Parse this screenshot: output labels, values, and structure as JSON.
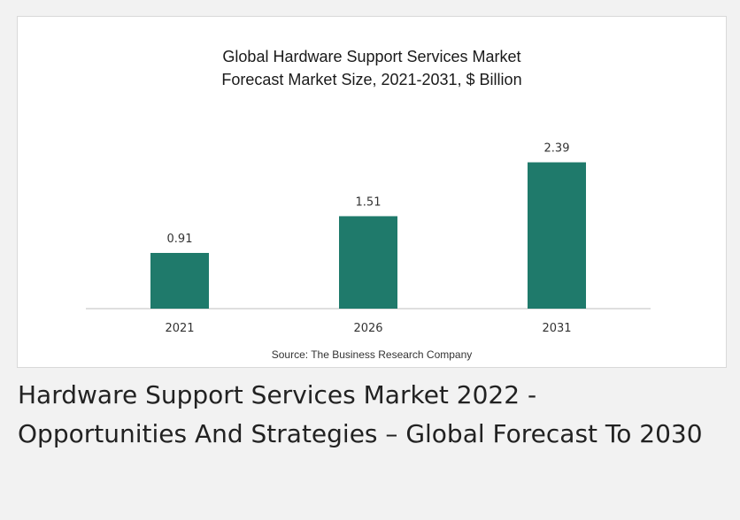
{
  "colors": {
    "bar": "#1f7a6b",
    "axis": "#bfbfbf",
    "text": "#333333"
  },
  "chart_data": {
    "type": "bar",
    "title_line1": "Global Hardware Support Services Market",
    "title_line2": "Forecast Market Size, 2021-2031, $ Billion",
    "categories": [
      "2021",
      "2026",
      "2031"
    ],
    "values": [
      0.91,
      1.51,
      2.39
    ],
    "data_labels": [
      "0.91",
      "1.51",
      "2.39"
    ],
    "source": "Source: The Business Research Company",
    "ylim": [
      0,
      2.6
    ],
    "grid": false,
    "legend": "none"
  },
  "caption": "Hardware Support Services Market 2022 - Opportunities And Strategies – Global Forecast To 2030"
}
